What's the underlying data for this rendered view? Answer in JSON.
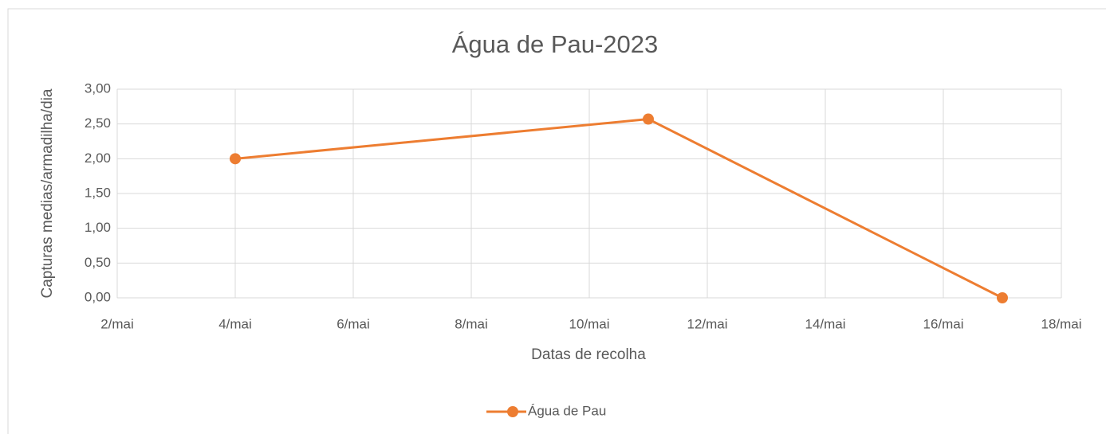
{
  "chart_data": {
    "type": "line",
    "title": "Água de Pau-2023",
    "x_label": "Datas de recolha",
    "y_label": "Capturas medias/armadilha/dia",
    "x": [
      4,
      11,
      17
    ],
    "series": [
      {
        "name": "Água de Pau",
        "color": "#ed7d31",
        "values": [
          2.0,
          2.57,
          0.0
        ]
      }
    ],
    "xlim": [
      2,
      18
    ],
    "xticks": [
      {
        "value": 2,
        "label": "2/mai"
      },
      {
        "value": 4,
        "label": "4/mai"
      },
      {
        "value": 6,
        "label": "6/mai"
      },
      {
        "value": 8,
        "label": "8/mai"
      },
      {
        "value": 10,
        "label": "10/mai"
      },
      {
        "value": 12,
        "label": "12/mai"
      },
      {
        "value": 14,
        "label": "14/mai"
      },
      {
        "value": 16,
        "label": "16/mai"
      },
      {
        "value": 18,
        "label": "18/mai"
      }
    ],
    "ylim": [
      0,
      3
    ],
    "yticks": [
      {
        "value": 0,
        "label": "0,00"
      },
      {
        "value": 0.5,
        "label": "0,50"
      },
      {
        "value": 1,
        "label": "1,00"
      },
      {
        "value": 1.5,
        "label": "1,50"
      },
      {
        "value": 2,
        "label": "2,00"
      },
      {
        "value": 2.5,
        "label": "2,50"
      },
      {
        "value": 3,
        "label": "3,00"
      }
    ],
    "grid": true,
    "legend": "bottom"
  }
}
